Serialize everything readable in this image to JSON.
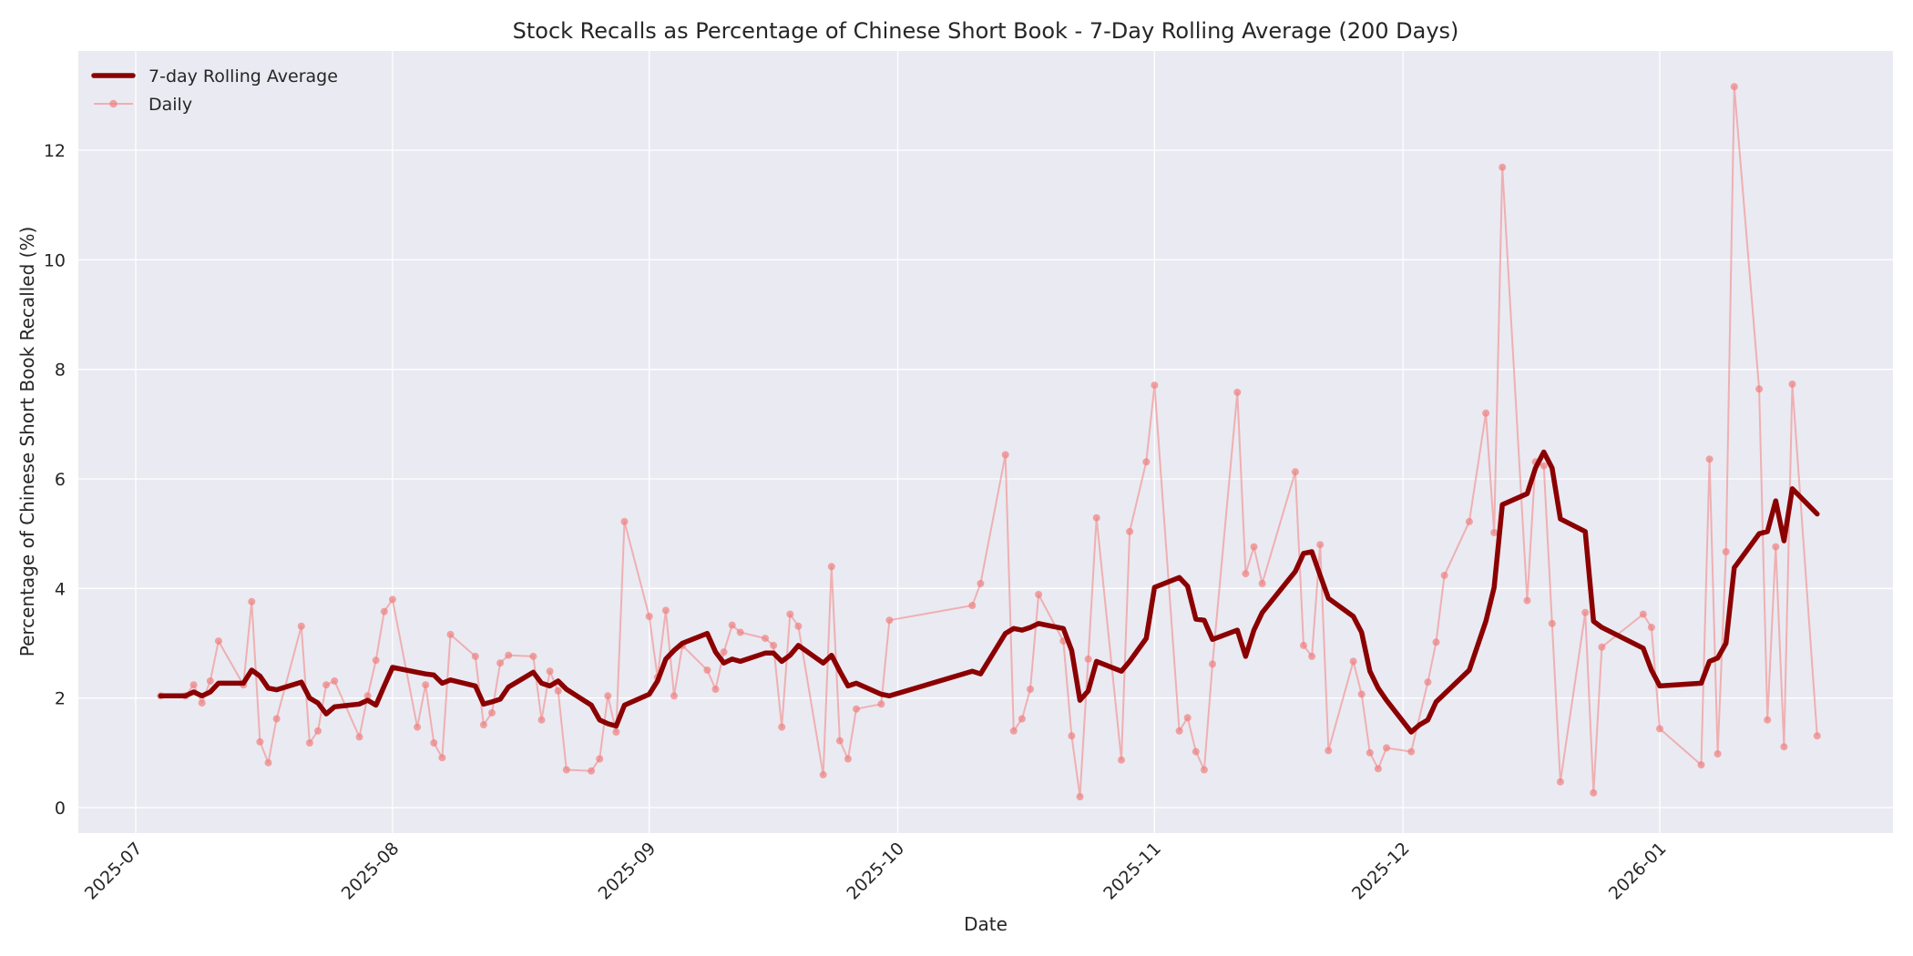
{
  "chart_data": {
    "type": "line",
    "title": "Stock Recalls as Percentage of Chinese Short Book - 7-Day Rolling Average (200 Days)",
    "xlabel": "Date",
    "ylabel": "Percentage of Chinese Short Book Recalled (%)",
    "xlim": [
      "2025-06-24",
      "2026-01-28"
    ],
    "ylim": [
      -0.42,
      13.62
    ],
    "grid": true,
    "legend_position": "upper left",
    "x_ticks": [
      "2025-07",
      "2025-08",
      "2025-09",
      "2025-10",
      "2025-11",
      "2025-12",
      "2026-01"
    ],
    "x_tick_dates": [
      "2025-07-01",
      "2025-08-01",
      "2025-09-01",
      "2025-10-01",
      "2025-11-01",
      "2025-12-01",
      "2026-01-01"
    ],
    "y_ticks": [
      0,
      2,
      4,
      6,
      8,
      10,
      12
    ],
    "colors": {
      "rolling": "#8B0000",
      "daily": "#F08080",
      "plot_background": "#EAEAF2",
      "grid": "#FFFFFF"
    },
    "series": [
      {
        "name": "7-day Rolling Average",
        "points": [
          [
            "2025-07-04",
            2.04
          ],
          [
            "2025-07-07",
            2.04
          ],
          [
            "2025-07-08",
            2.11
          ],
          [
            "2025-07-09",
            2.04
          ],
          [
            "2025-07-10",
            2.11
          ],
          [
            "2025-07-11",
            2.27
          ],
          [
            "2025-07-14",
            2.27
          ],
          [
            "2025-07-15",
            2.51
          ],
          [
            "2025-07-16",
            2.4
          ],
          [
            "2025-07-17",
            2.18
          ],
          [
            "2025-07-18",
            2.15
          ],
          [
            "2025-07-21",
            2.29
          ],
          [
            "2025-07-22",
            2.0
          ],
          [
            "2025-07-23",
            1.91
          ],
          [
            "2025-07-24",
            1.71
          ],
          [
            "2025-07-25",
            1.84
          ],
          [
            "2025-07-28",
            1.89
          ],
          [
            "2025-07-29",
            1.96
          ],
          [
            "2025-07-30",
            1.87
          ],
          [
            "2025-07-31",
            2.22
          ],
          [
            "2025-08-01",
            2.56
          ],
          [
            "2025-08-04",
            2.47
          ],
          [
            "2025-08-05",
            2.44
          ],
          [
            "2025-08-06",
            2.42
          ],
          [
            "2025-08-07",
            2.27
          ],
          [
            "2025-08-08",
            2.33
          ],
          [
            "2025-08-11",
            2.22
          ],
          [
            "2025-08-12",
            1.89
          ],
          [
            "2025-08-13",
            1.93
          ],
          [
            "2025-08-14",
            1.98
          ],
          [
            "2025-08-15",
            2.2
          ],
          [
            "2025-08-18",
            2.47
          ],
          [
            "2025-08-19",
            2.27
          ],
          [
            "2025-08-20",
            2.22
          ],
          [
            "2025-08-21",
            2.31
          ],
          [
            "2025-08-22",
            2.16
          ],
          [
            "2025-08-25",
            1.87
          ],
          [
            "2025-08-26",
            1.6
          ],
          [
            "2025-08-27",
            1.53
          ],
          [
            "2025-08-28",
            1.49
          ],
          [
            "2025-08-29",
            1.87
          ],
          [
            "2025-09-01",
            2.07
          ],
          [
            "2025-09-02",
            2.31
          ],
          [
            "2025-09-03",
            2.71
          ],
          [
            "2025-09-04",
            2.87
          ],
          [
            "2025-09-05",
            3.0
          ],
          [
            "2025-09-08",
            3.18
          ],
          [
            "2025-09-09",
            2.84
          ],
          [
            "2025-09-10",
            2.64
          ],
          [
            "2025-09-11",
            2.71
          ],
          [
            "2025-09-12",
            2.67
          ],
          [
            "2025-09-15",
            2.82
          ],
          [
            "2025-09-16",
            2.82
          ],
          [
            "2025-09-17",
            2.67
          ],
          [
            "2025-09-18",
            2.78
          ],
          [
            "2025-09-19",
            2.96
          ],
          [
            "2025-09-22",
            2.64
          ],
          [
            "2025-09-23",
            2.78
          ],
          [
            "2025-09-24",
            2.49
          ],
          [
            "2025-09-25",
            2.22
          ],
          [
            "2025-09-26",
            2.27
          ],
          [
            "2025-09-29",
            2.07
          ],
          [
            "2025-09-30",
            2.04
          ],
          [
            "2025-10-10",
            2.49
          ],
          [
            "2025-10-11",
            2.44
          ],
          [
            "2025-10-14",
            3.18
          ],
          [
            "2025-10-15",
            3.27
          ],
          [
            "2025-10-16",
            3.24
          ],
          [
            "2025-10-17",
            3.29
          ],
          [
            "2025-10-18",
            3.36
          ],
          [
            "2025-10-21",
            3.27
          ],
          [
            "2025-10-22",
            2.87
          ],
          [
            "2025-10-23",
            1.96
          ],
          [
            "2025-10-24",
            2.13
          ],
          [
            "2025-10-25",
            2.67
          ],
          [
            "2025-10-28",
            2.49
          ],
          [
            "2025-10-29",
            2.67
          ],
          [
            "2025-10-31",
            3.09
          ],
          [
            "2025-11-01",
            4.02
          ],
          [
            "2025-11-04",
            4.2
          ],
          [
            "2025-11-05",
            4.04
          ],
          [
            "2025-11-06",
            3.44
          ],
          [
            "2025-11-07",
            3.42
          ],
          [
            "2025-11-08",
            3.07
          ],
          [
            "2025-11-11",
            3.24
          ],
          [
            "2025-11-12",
            2.76
          ],
          [
            "2025-11-13",
            3.24
          ],
          [
            "2025-11-14",
            3.56
          ],
          [
            "2025-11-18",
            4.31
          ],
          [
            "2025-11-19",
            4.64
          ],
          [
            "2025-11-20",
            4.67
          ],
          [
            "2025-11-21",
            4.24
          ],
          [
            "2025-11-22",
            3.82
          ],
          [
            "2025-11-25",
            3.49
          ],
          [
            "2025-11-26",
            3.2
          ],
          [
            "2025-11-27",
            2.49
          ],
          [
            "2025-11-28",
            2.18
          ],
          [
            "2025-11-29",
            1.96
          ],
          [
            "2025-12-02",
            1.38
          ],
          [
            "2025-12-03",
            1.51
          ],
          [
            "2025-12-04",
            1.6
          ],
          [
            "2025-12-05",
            1.93
          ],
          [
            "2025-12-09",
            2.51
          ],
          [
            "2025-12-11",
            3.4
          ],
          [
            "2025-12-12",
            4.02
          ],
          [
            "2025-12-13",
            5.53
          ],
          [
            "2025-12-16",
            5.73
          ],
          [
            "2025-12-17",
            6.2
          ],
          [
            "2025-12-18",
            6.49
          ],
          [
            "2025-12-19",
            6.2
          ],
          [
            "2025-12-20",
            5.27
          ],
          [
            "2025-12-23",
            5.04
          ],
          [
            "2025-12-24",
            3.4
          ],
          [
            "2025-12-25",
            3.29
          ],
          [
            "2025-12-30",
            2.91
          ],
          [
            "2025-12-31",
            2.51
          ],
          [
            "2026-01-01",
            2.22
          ],
          [
            "2026-01-06",
            2.27
          ],
          [
            "2026-01-07",
            2.67
          ],
          [
            "2026-01-08",
            2.73
          ],
          [
            "2026-01-09",
            3.0
          ],
          [
            "2026-01-10",
            4.38
          ],
          [
            "2026-01-13",
            5.0
          ],
          [
            "2026-01-14",
            5.04
          ],
          [
            "2026-01-15",
            5.6
          ],
          [
            "2026-01-16",
            4.87
          ],
          [
            "2026-01-17",
            5.82
          ],
          [
            "2026-01-20",
            5.36
          ]
        ]
      },
      {
        "name": "Daily",
        "points": [
          [
            "2025-07-04",
            2.04
          ],
          [
            "2025-07-07",
            2.04
          ],
          [
            "2025-07-08",
            2.24
          ],
          [
            "2025-07-09",
            1.91
          ],
          [
            "2025-07-10",
            2.31
          ],
          [
            "2025-07-11",
            3.04
          ],
          [
            "2025-07-14",
            2.24
          ],
          [
            "2025-07-15",
            3.76
          ],
          [
            "2025-07-16",
            1.2
          ],
          [
            "2025-07-17",
            0.82
          ],
          [
            "2025-07-18",
            1.62
          ],
          [
            "2025-07-21",
            3.31
          ],
          [
            "2025-07-22",
            1.18
          ],
          [
            "2025-07-23",
            1.4
          ],
          [
            "2025-07-24",
            2.24
          ],
          [
            "2025-07-25",
            2.31
          ],
          [
            "2025-07-28",
            1.29
          ],
          [
            "2025-07-29",
            2.04
          ],
          [
            "2025-07-30",
            2.69
          ],
          [
            "2025-07-31",
            3.58
          ],
          [
            "2025-08-01",
            3.8
          ],
          [
            "2025-08-04",
            1.47
          ],
          [
            "2025-08-05",
            2.24
          ],
          [
            "2025-08-06",
            1.18
          ],
          [
            "2025-08-07",
            0.91
          ],
          [
            "2025-08-08",
            3.16
          ],
          [
            "2025-08-11",
            2.76
          ],
          [
            "2025-08-12",
            1.51
          ],
          [
            "2025-08-13",
            1.73
          ],
          [
            "2025-08-14",
            2.64
          ],
          [
            "2025-08-15",
            2.78
          ],
          [
            "2025-08-18",
            2.76
          ],
          [
            "2025-08-19",
            1.6
          ],
          [
            "2025-08-20",
            2.49
          ],
          [
            "2025-08-21",
            2.13
          ],
          [
            "2025-08-22",
            0.69
          ],
          [
            "2025-08-25",
            0.67
          ],
          [
            "2025-08-26",
            0.89
          ],
          [
            "2025-08-27",
            2.04
          ],
          [
            "2025-08-28",
            1.38
          ],
          [
            "2025-08-29",
            5.22
          ],
          [
            "2025-09-01",
            3.49
          ],
          [
            "2025-09-02",
            2.38
          ],
          [
            "2025-09-03",
            3.6
          ],
          [
            "2025-09-04",
            2.04
          ],
          [
            "2025-09-05",
            2.96
          ],
          [
            "2025-09-08",
            2.51
          ],
          [
            "2025-09-09",
            2.16
          ],
          [
            "2025-09-10",
            2.84
          ],
          [
            "2025-09-11",
            3.33
          ],
          [
            "2025-09-12",
            3.2
          ],
          [
            "2025-09-15",
            3.09
          ],
          [
            "2025-09-16",
            2.96
          ],
          [
            "2025-09-17",
            1.47
          ],
          [
            "2025-09-18",
            3.53
          ],
          [
            "2025-09-19",
            3.31
          ],
          [
            "2025-09-22",
            0.6
          ],
          [
            "2025-09-23",
            4.4
          ],
          [
            "2025-09-24",
            1.22
          ],
          [
            "2025-09-25",
            0.89
          ],
          [
            "2025-09-26",
            1.8
          ],
          [
            "2025-09-29",
            1.89
          ],
          [
            "2025-09-30",
            3.42
          ],
          [
            "2025-10-10",
            3.69
          ],
          [
            "2025-10-11",
            4.09
          ],
          [
            "2025-10-14",
            6.44
          ],
          [
            "2025-10-15",
            1.4
          ],
          [
            "2025-10-16",
            1.62
          ],
          [
            "2025-10-17",
            2.16
          ],
          [
            "2025-10-18",
            3.89
          ],
          [
            "2025-10-21",
            3.04
          ],
          [
            "2025-10-22",
            1.31
          ],
          [
            "2025-10-23",
            0.2
          ],
          [
            "2025-10-24",
            2.71
          ],
          [
            "2025-10-25",
            5.29
          ],
          [
            "2025-10-28",
            0.87
          ],
          [
            "2025-10-29",
            5.04
          ],
          [
            "2025-10-31",
            6.31
          ],
          [
            "2025-11-01",
            7.71
          ],
          [
            "2025-11-04",
            1.4
          ],
          [
            "2025-11-05",
            1.64
          ],
          [
            "2025-11-06",
            1.02
          ],
          [
            "2025-11-07",
            0.69
          ],
          [
            "2025-11-08",
            2.62
          ],
          [
            "2025-11-11",
            7.58
          ],
          [
            "2025-11-12",
            4.27
          ],
          [
            "2025-11-13",
            4.76
          ],
          [
            "2025-11-14",
            4.09
          ],
          [
            "2025-11-18",
            6.13
          ],
          [
            "2025-11-19",
            2.96
          ],
          [
            "2025-11-20",
            2.76
          ],
          [
            "2025-11-21",
            4.8
          ],
          [
            "2025-11-22",
            1.04
          ],
          [
            "2025-11-25",
            2.67
          ],
          [
            "2025-11-26",
            2.07
          ],
          [
            "2025-11-27",
            1.0
          ],
          [
            "2025-11-28",
            0.71
          ],
          [
            "2025-11-29",
            1.09
          ],
          [
            "2025-12-02",
            1.02
          ],
          [
            "2025-12-04",
            2.29
          ],
          [
            "2025-12-05",
            3.02
          ],
          [
            "2025-12-06",
            4.24
          ],
          [
            "2025-12-09",
            5.22
          ],
          [
            "2025-12-11",
            7.2
          ],
          [
            "2025-12-12",
            5.02
          ],
          [
            "2025-12-13",
            11.69
          ],
          [
            "2025-12-16",
            3.78
          ],
          [
            "2025-12-17",
            6.31
          ],
          [
            "2025-12-18",
            6.24
          ],
          [
            "2025-12-19",
            3.36
          ],
          [
            "2025-12-20",
            0.47
          ],
          [
            "2025-12-23",
            3.56
          ],
          [
            "2025-12-24",
            0.27
          ],
          [
            "2025-12-25",
            2.93
          ],
          [
            "2025-12-30",
            3.53
          ],
          [
            "2025-12-31",
            3.29
          ],
          [
            "2026-01-01",
            1.44
          ],
          [
            "2026-01-06",
            0.78
          ],
          [
            "2026-01-07",
            6.36
          ],
          [
            "2026-01-08",
            0.98
          ],
          [
            "2026-01-09",
            4.67
          ],
          [
            "2026-01-10",
            13.16
          ],
          [
            "2026-01-13",
            7.64
          ],
          [
            "2026-01-14",
            1.6
          ],
          [
            "2026-01-15",
            4.76
          ],
          [
            "2026-01-16",
            1.11
          ],
          [
            "2026-01-17",
            7.73
          ],
          [
            "2026-01-20",
            1.31
          ]
        ]
      }
    ]
  },
  "legend": {
    "items": [
      "7-day Rolling Average",
      "Daily"
    ]
  }
}
